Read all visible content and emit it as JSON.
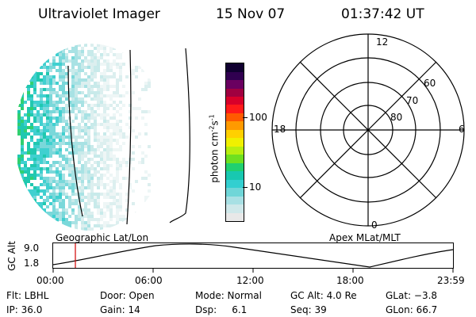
{
  "header": {
    "title": "Ultraviolet Imager",
    "date": "15 Nov 07",
    "time": "01:37:42 UT"
  },
  "colorbar": {
    "label": "photon cm",
    "label_sup1": "-2",
    "label_mid": "s",
    "label_sup2": "-1",
    "ticks": [
      "100",
      "10"
    ],
    "scale": "log",
    "colors": [
      "#e8e8e8",
      "#cfe8ea",
      "#a8e0e4",
      "#6fd6d8",
      "#33cfd0",
      "#18c8b0",
      "#20d070",
      "#6ee020",
      "#b8ee10",
      "#f0f000",
      "#ffd000",
      "#ff9a00",
      "#ff5a00",
      "#ff1a1a",
      "#d8002a",
      "#a00040",
      "#6a0060",
      "#300050",
      "#100030"
    ]
  },
  "polar": {
    "mlt_labels": {
      "top": "12",
      "left": "18",
      "right": "6",
      "bottom": "0"
    },
    "lat_labels": [
      "60",
      "70",
      "80"
    ]
  },
  "timeline": {
    "ylabel": "GC Alt",
    "ytop": "9.0",
    "ybottom": "1.8",
    "left_label": "Geographic Lat/Lon",
    "right_label": "Apex MLat/MLT",
    "ticks": [
      "00:00",
      "06:00",
      "12:00",
      "18:00",
      "23:59"
    ]
  },
  "status": {
    "flt": "Flt: LBHL",
    "door": "Door: Open",
    "mode": "Mode: Normal",
    "gcalt": "GC Alt: 4.0 Re",
    "glat": "GLat: −3.8",
    "ip": "IP: 36.0",
    "gain": "Gain: 14",
    "dsp": "Dsp:     6.1",
    "seq": "Seq: 39",
    "glon": "GLon: 66.7"
  }
}
